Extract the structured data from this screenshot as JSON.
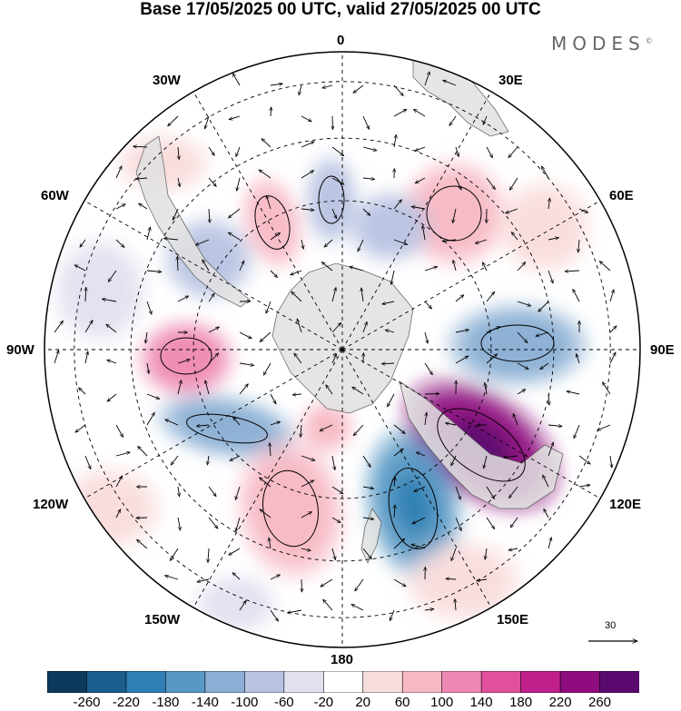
{
  "title": "Base 17/05/2025 00 UTC, valid 27/05/2025 00 UTC",
  "brand": "MODES",
  "brand_mark": "©",
  "meridian_labels": {
    "m0": "0",
    "m30e": "30E",
    "m60e": "60E",
    "m90e": "90E",
    "m120e": "120E",
    "m150e": "150E",
    "m180": "180",
    "m150w": "150W",
    "m120w": "120W",
    "m90w": "90W",
    "m60w": "60W",
    "m30w": "30W"
  },
  "reference_vector": "30",
  "colorbar": {
    "levels": [
      "-260",
      "-220",
      "-180",
      "-140",
      "-100",
      "-60",
      "-20",
      "20",
      "60",
      "100",
      "140",
      "180",
      "220",
      "260"
    ],
    "colors": [
      "#0c3a5c",
      "#1a5e8e",
      "#2f7fb4",
      "#5898c4",
      "#8aaed4",
      "#b8c3e2",
      "#e1e1f1",
      "#ffffff",
      "#f9dcdc",
      "#f7b8c4",
      "#ee88b3",
      "#e0509d",
      "#c01f8c",
      "#8e0c7e",
      "#5a0a6e"
    ]
  },
  "palette": {
    "land": "#e1e1e1",
    "coast": "#555555",
    "grid": "#000000"
  }
}
